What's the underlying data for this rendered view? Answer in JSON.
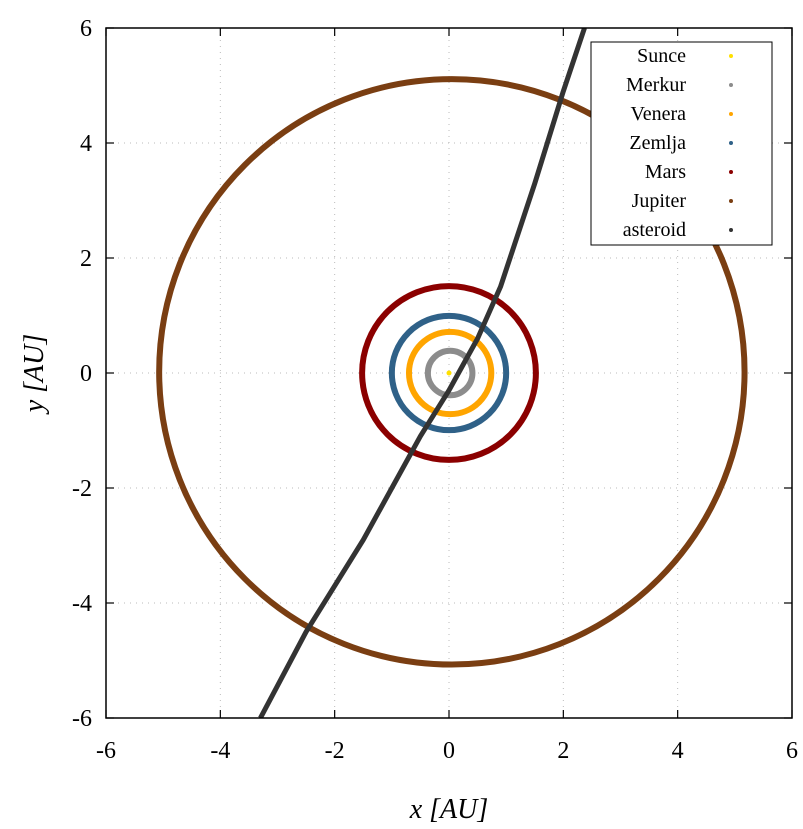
{
  "chart_data": {
    "type": "scatter",
    "xlabel": "x [AU]",
    "ylabel": "y [AU]",
    "xlim": [
      -6,
      6
    ],
    "ylim": [
      -6,
      6
    ],
    "xticks": [
      -6,
      -4,
      -2,
      0,
      2,
      4,
      6
    ],
    "yticks": [
      -6,
      -4,
      -2,
      0,
      2,
      4,
      6
    ],
    "xtick_labels": [
      "-6",
      "-4",
      "-2",
      "0",
      "2",
      "4",
      "6"
    ],
    "ytick_labels": [
      "-6",
      "-4",
      "-2",
      "0",
      "2",
      "4",
      "6"
    ],
    "grid": true,
    "legend_position": "top-right",
    "series": [
      {
        "name": "Sunce",
        "color": "#ffe000",
        "kind": "point",
        "cx": 0.0,
        "cy": 0.0
      },
      {
        "name": "Merkur",
        "color": "#8c8c8c",
        "kind": "orbit",
        "cx": 0.02,
        "cy": 0.0,
        "r": 0.39
      },
      {
        "name": "Venera",
        "color": "#ffa500",
        "kind": "orbit",
        "cx": 0.02,
        "cy": 0.0,
        "r": 0.72
      },
      {
        "name": "Zemlja",
        "color": "#2f6188",
        "kind": "orbit",
        "cx": 0.0,
        "cy": 0.0,
        "r": 1.0
      },
      {
        "name": "Mars",
        "color": "#8b0000",
        "kind": "orbit",
        "cx": 0.0,
        "cy": 0.0,
        "r": 1.52
      },
      {
        "name": "Jupiter",
        "color": "#7a3e12",
        "kind": "orbit",
        "cx": 0.05,
        "cy": 0.02,
        "r": 5.12
      },
      {
        "name": "asteroid",
        "color": "#333333",
        "kind": "path",
        "points": [
          [
            -3.3,
            -6.0
          ],
          [
            -2.5,
            -4.5
          ],
          [
            -1.5,
            -2.9
          ],
          [
            -0.5,
            -1.1
          ],
          [
            0.0,
            -0.3
          ],
          [
            0.5,
            0.6
          ],
          [
            0.9,
            1.5
          ],
          [
            1.5,
            3.3
          ],
          [
            2.0,
            4.9
          ],
          [
            2.37,
            6.0
          ]
        ]
      }
    ]
  }
}
